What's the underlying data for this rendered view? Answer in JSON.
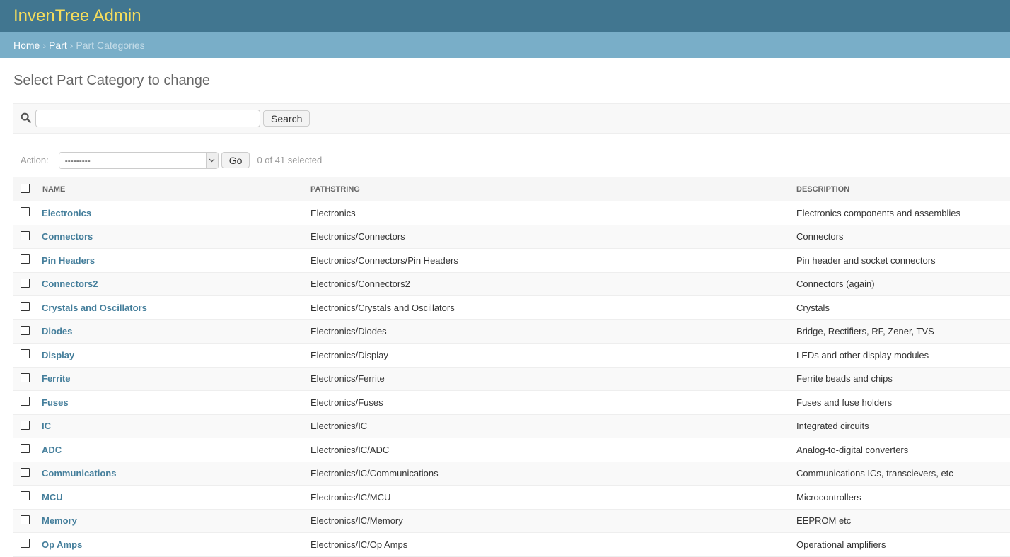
{
  "header": {
    "title": "InvenTree Admin"
  },
  "breadcrumb": {
    "home": "Home",
    "app": "Part",
    "current": "Part Categories",
    "separator": "›"
  },
  "page_title": "Select Part Category to change",
  "search": {
    "value": "",
    "button": "Search",
    "icon": "search-icon"
  },
  "actions": {
    "label": "Action:",
    "selected": "---------",
    "go": "Go",
    "counter": "0 of 41 selected"
  },
  "table": {
    "columns": [
      "Name",
      "Pathstring",
      "Description"
    ],
    "rows": [
      {
        "name": "Electronics",
        "path": "Electronics",
        "description": "Electronics components and assemblies"
      },
      {
        "name": "Connectors",
        "path": "Electronics/Connectors",
        "description": "Connectors"
      },
      {
        "name": "Pin Headers",
        "path": "Electronics/Connectors/Pin Headers",
        "description": "Pin header and socket connectors"
      },
      {
        "name": "Connectors2",
        "path": "Electronics/Connectors2",
        "description": "Connectors (again)"
      },
      {
        "name": "Crystals and Oscillators",
        "path": "Electronics/Crystals and Oscillators",
        "description": "Crystals"
      },
      {
        "name": "Diodes",
        "path": "Electronics/Diodes",
        "description": "Bridge, Rectifiers, RF, Zener, TVS"
      },
      {
        "name": "Display",
        "path": "Electronics/Display",
        "description": "LEDs and other display modules"
      },
      {
        "name": "Ferrite",
        "path": "Electronics/Ferrite",
        "description": "Ferrite beads and chips"
      },
      {
        "name": "Fuses",
        "path": "Electronics/Fuses",
        "description": "Fuses and fuse holders"
      },
      {
        "name": "IC",
        "path": "Electronics/IC",
        "description": "Integrated circuits"
      },
      {
        "name": "ADC",
        "path": "Electronics/IC/ADC",
        "description": "Analog-to-digital converters"
      },
      {
        "name": "Communications",
        "path": "Electronics/IC/Communications",
        "description": "Communications ICs, transcievers, etc"
      },
      {
        "name": "MCU",
        "path": "Electronics/IC/MCU",
        "description": "Microcontrollers"
      },
      {
        "name": "Memory",
        "path": "Electronics/IC/Memory",
        "description": "EEPROM etc"
      },
      {
        "name": "Op Amps",
        "path": "Electronics/IC/Op Amps",
        "description": "Operational amplifiers"
      }
    ]
  }
}
